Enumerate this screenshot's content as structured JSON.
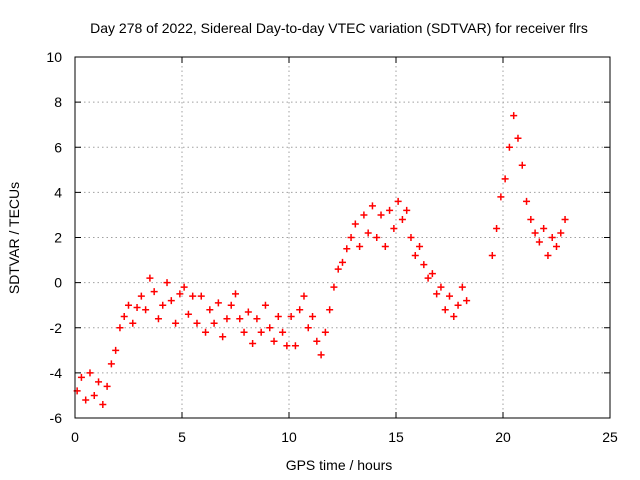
{
  "chart_data": {
    "type": "scatter",
    "title": "Day 278 of 2022, Sidereal Day-to-day VTEC variation (SDTVAR) for receiver flrs",
    "xlabel": "GPS time / hours",
    "ylabel": "SDTVAR / TECUs",
    "xlim": [
      0,
      25
    ],
    "ylim": [
      -6,
      10
    ],
    "xticks": [
      0,
      5,
      10,
      15,
      20,
      25
    ],
    "yticks": [
      -6,
      -4,
      -2,
      0,
      2,
      4,
      6,
      8,
      10
    ],
    "xtick_labels": [
      "0",
      "5",
      "10",
      "15",
      "20",
      "25"
    ],
    "ytick_labels": [
      "-6",
      "-4",
      "-2",
      "0",
      "2",
      "4",
      "6",
      "8",
      "10"
    ],
    "grid": true,
    "marker": "+",
    "series": [
      {
        "name": "SDTVAR",
        "color": "#ff0000",
        "x": [
          0.1,
          0.3,
          0.5,
          0.7,
          0.9,
          1.1,
          1.3,
          1.5,
          1.7,
          1.9,
          2.1,
          2.3,
          2.5,
          2.7,
          2.9,
          3.1,
          3.3,
          3.5,
          3.7,
          3.9,
          4.1,
          4.3,
          4.5,
          4.7,
          4.9,
          5.1,
          5.3,
          5.5,
          5.7,
          5.9,
          6.1,
          6.3,
          6.5,
          6.7,
          6.9,
          7.1,
          7.3,
          7.5,
          7.7,
          7.9,
          8.1,
          8.3,
          8.5,
          8.7,
          8.9,
          9.1,
          9.3,
          9.5,
          9.7,
          9.9,
          10.1,
          10.3,
          10.5,
          10.7,
          10.9,
          11.1,
          11.3,
          11.5,
          11.7,
          11.9,
          12.1,
          12.3,
          12.5,
          12.7,
          12.9,
          13.1,
          13.3,
          13.5,
          13.7,
          13.9,
          14.1,
          14.3,
          14.5,
          14.7,
          14.9,
          15.1,
          15.3,
          15.5,
          15.7,
          15.9,
          16.1,
          16.3,
          16.5,
          16.7,
          16.9,
          17.1,
          17.3,
          17.5,
          17.7,
          17.9,
          18.1,
          18.3,
          19.5,
          19.7,
          19.9,
          20.1,
          20.3,
          20.5,
          20.7,
          20.9,
          21.1,
          21.3,
          21.5,
          21.7,
          21.9,
          22.1,
          22.3,
          22.5,
          22.7,
          22.9
        ],
        "y": [
          -4.8,
          -4.2,
          -5.2,
          -4.0,
          -5.0,
          -4.4,
          -5.4,
          -4.6,
          -3.6,
          -3.0,
          -2.0,
          -1.5,
          -1.0,
          -1.8,
          -1.1,
          -0.6,
          -1.2,
          0.2,
          -0.4,
          -1.6,
          -1.0,
          0.0,
          -0.8,
          -1.8,
          -0.5,
          -0.2,
          -1.4,
          -0.6,
          -1.8,
          -0.6,
          -2.2,
          -1.2,
          -1.8,
          -0.9,
          -2.4,
          -1.6,
          -1.0,
          -0.5,
          -1.6,
          -2.2,
          -1.3,
          -2.7,
          -1.6,
          -2.2,
          -1.0,
          -2.0,
          -2.6,
          -1.5,
          -2.2,
          -2.8,
          -1.5,
          -2.8,
          -1.2,
          -0.6,
          -2.0,
          -1.5,
          -2.6,
          -3.2,
          -2.2,
          -1.2,
          -0.2,
          0.6,
          0.9,
          1.5,
          2.0,
          2.6,
          1.6,
          3.0,
          2.2,
          3.4,
          2.0,
          3.0,
          1.6,
          3.2,
          2.4,
          3.6,
          2.8,
          3.2,
          2.0,
          1.2,
          1.6,
          0.8,
          0.2,
          0.4,
          -0.5,
          -0.2,
          -1.2,
          -0.6,
          -1.5,
          -1.0,
          -0.2,
          -0.8,
          1.2,
          2.4,
          3.8,
          4.6,
          6.0,
          7.4,
          6.4,
          5.2,
          3.6,
          2.8,
          2.2,
          1.8,
          2.4,
          1.2,
          2.0,
          1.6,
          2.2,
          2.8
        ]
      }
    ]
  }
}
